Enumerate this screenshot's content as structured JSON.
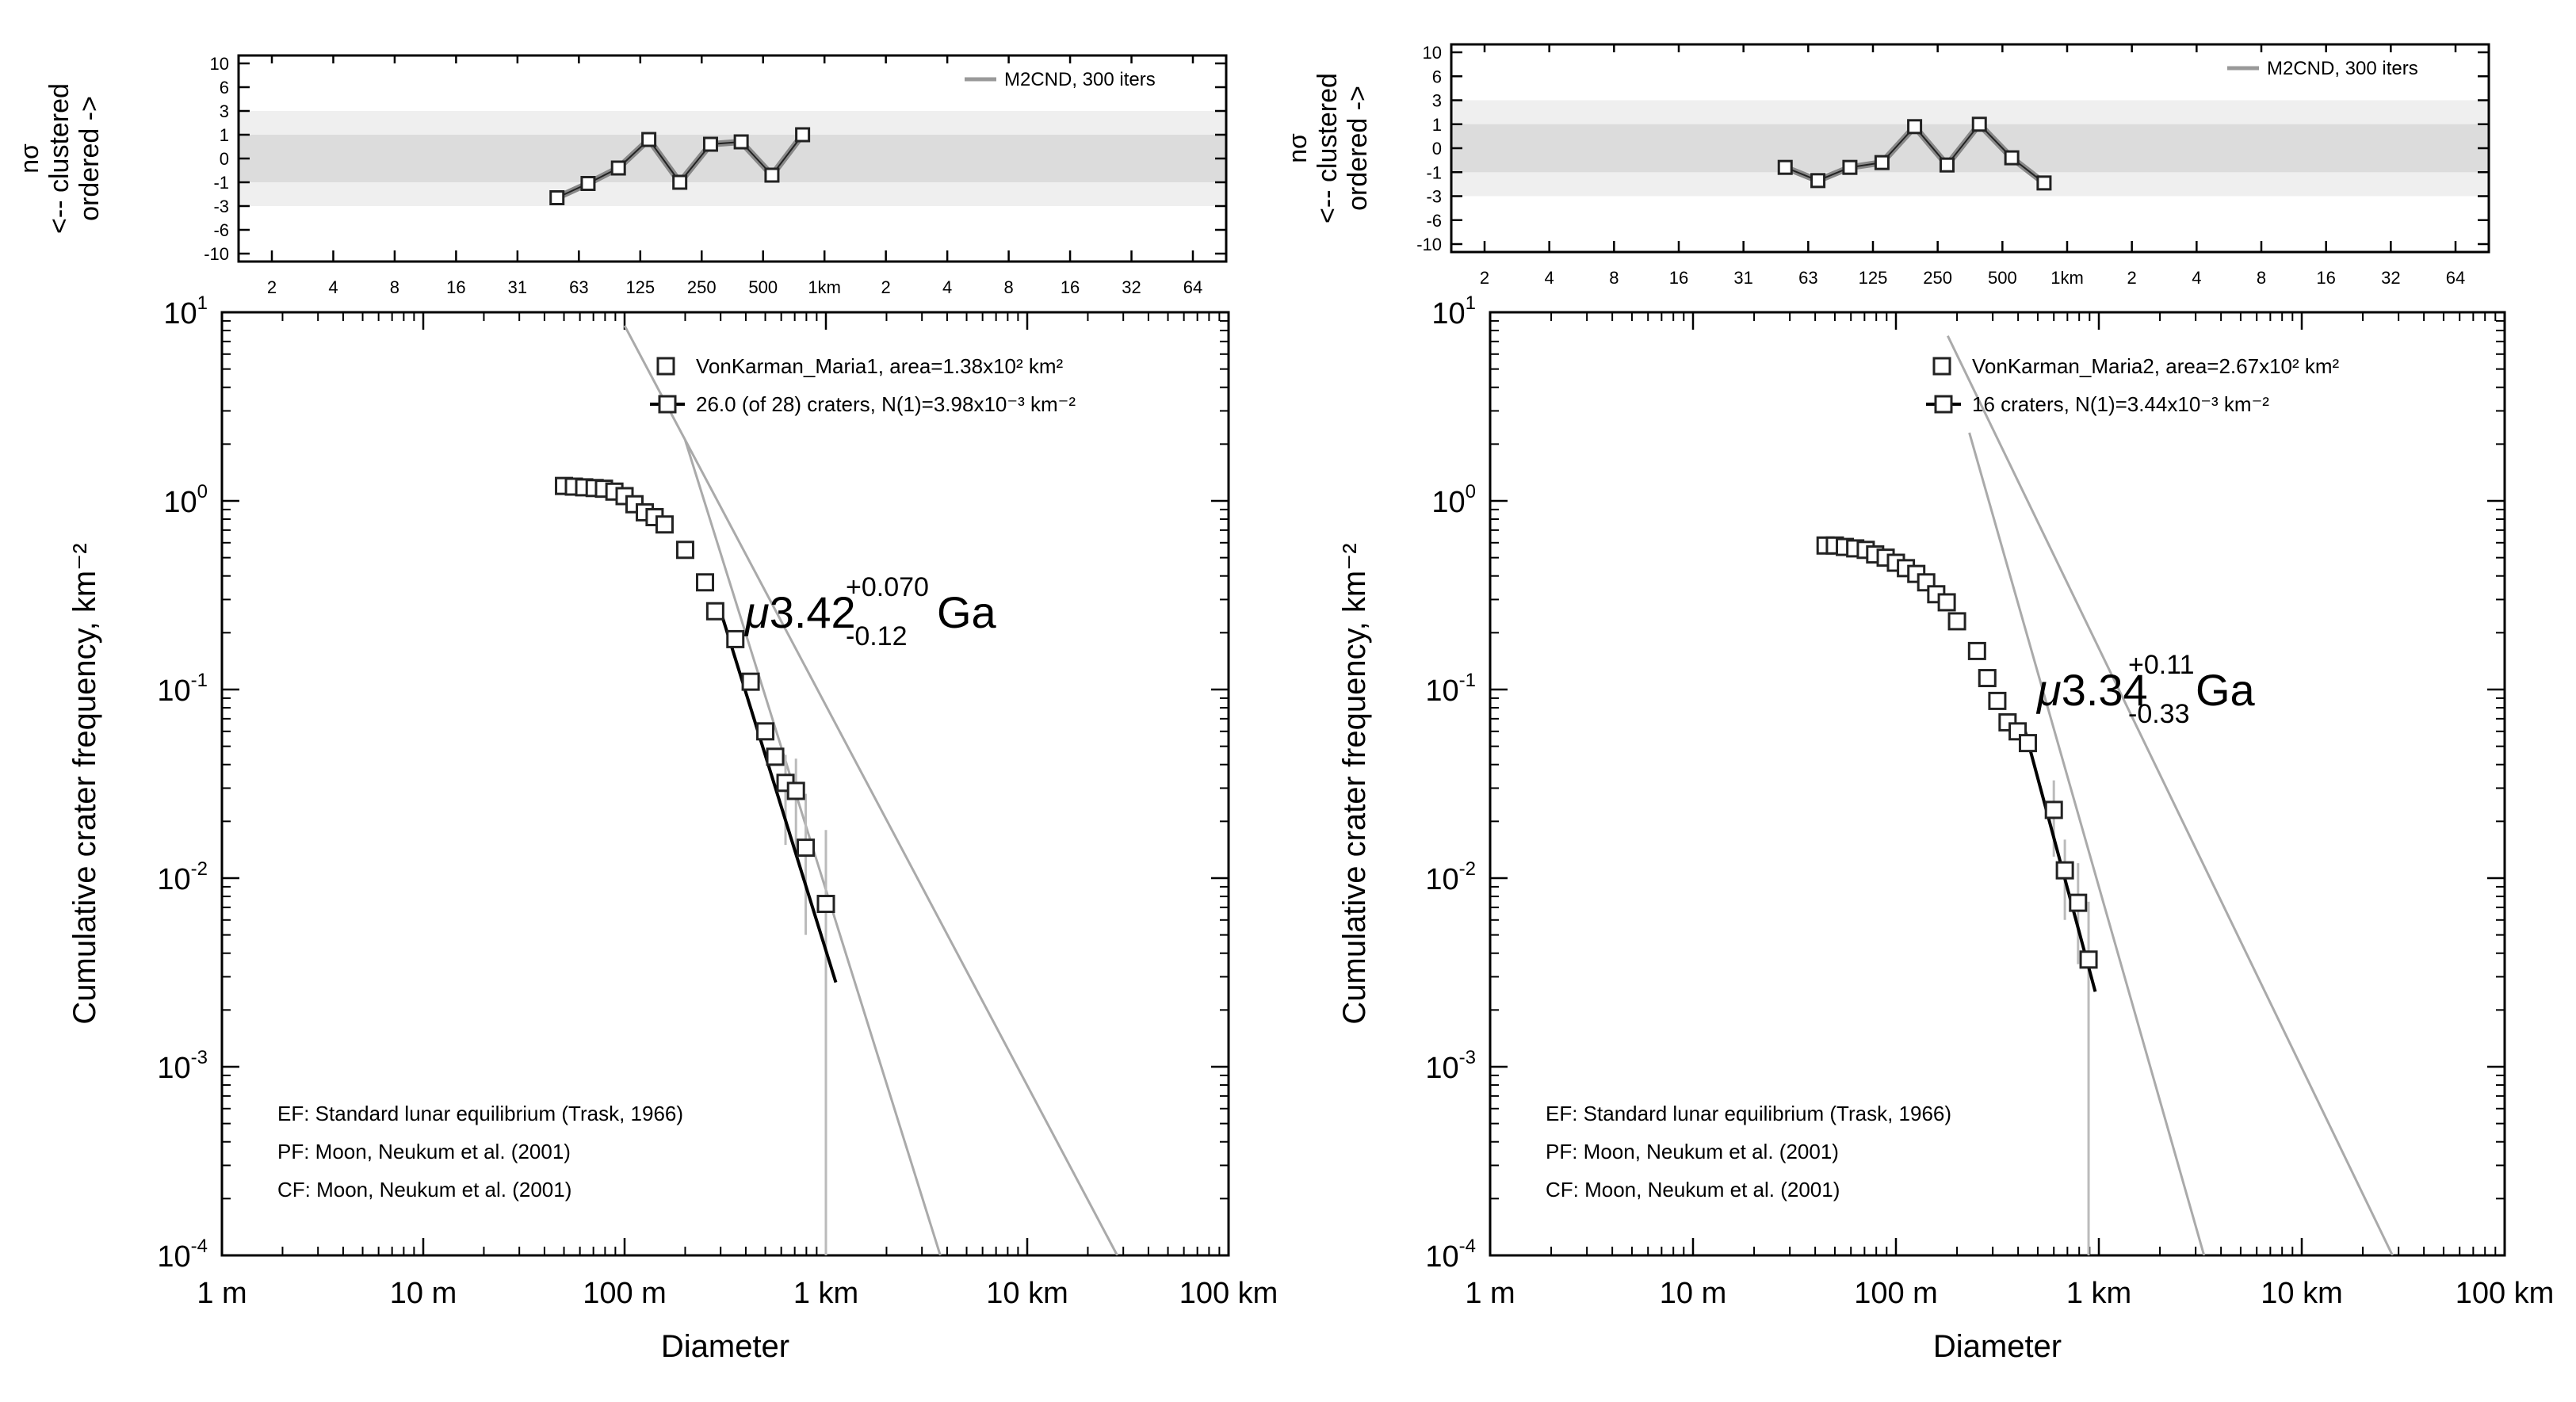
{
  "chart_data": [
    {
      "type": "scatter",
      "panel": "left",
      "randomness": {
        "ylabel_lines": [
          "nσ",
          "<-- clustered",
          "ordered ->"
        ],
        "yticks": [
          "10",
          "6",
          "3",
          "1",
          "0",
          "-1",
          "-3",
          "-6",
          "-10"
        ],
        "xticks": [
          "2",
          "4",
          "8",
          "16",
          "31",
          "63",
          "125",
          "250",
          "500",
          "1km",
          "2",
          "4",
          "8",
          "16",
          "32",
          "64"
        ],
        "legend": "M2CND, 300 iters",
        "bands": {
          "sigma1": 1,
          "sigma3": 3
        },
        "points": [
          {
            "d_m": 50,
            "n": -2.3
          },
          {
            "d_m": 71,
            "n": -1.1
          },
          {
            "d_m": 100,
            "n": -0.4
          },
          {
            "d_m": 141,
            "n": 0.8
          },
          {
            "d_m": 200,
            "n": -1.0
          },
          {
            "d_m": 283,
            "n": 0.6
          },
          {
            "d_m": 400,
            "n": 0.7
          },
          {
            "d_m": 566,
            "n": -0.7
          },
          {
            "d_m": 800,
            "n": 1.0
          }
        ]
      },
      "csfd": {
        "title": "",
        "xlabel": "Diameter",
        "ylabel": "Cumulative crater frequency, km⁻²",
        "xscale": "log",
        "yscale": "log",
        "xlim_km": [
          0.001,
          100
        ],
        "ylim": [
          0.0001,
          10
        ],
        "xticks": [
          "1 m",
          "10 m",
          "100 m",
          "1 km",
          "10 km",
          "100 km"
        ],
        "ytick_mant": [
          "10",
          "10",
          "10",
          "10",
          "10",
          "10"
        ],
        "ytick_exp": [
          "1",
          "0",
          "-1",
          "-2",
          "-3",
          "-4"
        ],
        "legend": {
          "area_label": "VonKarman_Maria1, area=1.38x10² km²",
          "fit_label": "26.0 (of 28) craters, N(1)=3.98x10⁻³ km⁻²"
        },
        "age": {
          "prefix": "μ",
          "value": "3.42",
          "plus": "+0.070",
          "minus": "-0.12",
          "unit": "Ga"
        },
        "notes": [
          "EF: Standard lunar equilibrium (Trask, 1966)",
          "PF: Moon, Neukum et al. (2001)",
          "CF: Moon, Neukum et al. (2001)"
        ],
        "points": [
          {
            "d_km": 0.05,
            "f": 1.2
          },
          {
            "d_km": 0.056,
            "f": 1.19
          },
          {
            "d_km": 0.063,
            "f": 1.18
          },
          {
            "d_km": 0.071,
            "f": 1.17
          },
          {
            "d_km": 0.079,
            "f": 1.16
          },
          {
            "d_km": 0.089,
            "f": 1.12
          },
          {
            "d_km": 0.1,
            "f": 1.06
          },
          {
            "d_km": 0.112,
            "f": 0.96
          },
          {
            "d_km": 0.126,
            "f": 0.87
          },
          {
            "d_km": 0.141,
            "f": 0.82
          },
          {
            "d_km": 0.158,
            "f": 0.75
          },
          {
            "d_km": 0.2,
            "f": 0.55
          },
          {
            "d_km": 0.251,
            "f": 0.37
          },
          {
            "d_km": 0.282,
            "f": 0.26
          },
          {
            "d_km": 0.355,
            "f": 0.185
          },
          {
            "d_km": 0.423,
            "f": 0.11
          },
          {
            "d_km": 0.5,
            "f": 0.06
          },
          {
            "d_km": 0.56,
            "f": 0.044
          },
          {
            "d_km": 0.63,
            "f": 0.032
          },
          {
            "d_km": 0.71,
            "f": 0.029
          },
          {
            "d_km": 0.794,
            "f": 0.0145
          },
          {
            "d_km": 1.0,
            "f": 0.0073
          }
        ],
        "error_bars": [
          {
            "d_km": 0.63,
            "lo": 0.015,
            "hi": 0.045
          },
          {
            "d_km": 0.71,
            "lo": 0.014,
            "hi": 0.043
          },
          {
            "d_km": 0.794,
            "lo": 0.005,
            "hi": 0.028
          },
          {
            "d_km": 1.0,
            "lo": 0.0001,
            "hi": 0.018
          }
        ],
        "fit_line": [
          [
            0.3,
            0.26
          ],
          [
            1.12,
            0.0028
          ]
        ],
        "ef_line": [
          [
            0.1,
            8.5
          ],
          [
            28.0,
            0.0001
          ]
        ],
        "pf_line": [
          [
            0.2,
            2.1
          ],
          [
            3.7,
            0.0001
          ]
        ]
      }
    },
    {
      "type": "scatter",
      "panel": "right",
      "randomness": {
        "ylabel_lines": [
          "nσ",
          "<-- clustered",
          "ordered ->"
        ],
        "yticks": [
          "10",
          "6",
          "3",
          "1",
          "0",
          "-1",
          "-3",
          "-6",
          "-10"
        ],
        "xticks": [
          "2",
          "4",
          "8",
          "16",
          "31",
          "63",
          "125",
          "250",
          "500",
          "1km",
          "2",
          "4",
          "8",
          "16",
          "32",
          "64"
        ],
        "legend": "M2CND, 300 iters",
        "bands": {
          "sigma1": 1,
          "sigma3": 3
        },
        "points": [
          {
            "d_m": 50,
            "n": -0.8
          },
          {
            "d_m": 71,
            "n": -1.7
          },
          {
            "d_m": 100,
            "n": -0.8
          },
          {
            "d_m": 141,
            "n": -0.6
          },
          {
            "d_m": 200,
            "n": 0.9
          },
          {
            "d_m": 283,
            "n": -0.7
          },
          {
            "d_m": 400,
            "n": 1.0
          },
          {
            "d_m": 566,
            "n": -0.4
          },
          {
            "d_m": 800,
            "n": -1.9
          }
        ]
      },
      "csfd": {
        "title": "",
        "xlabel": "Diameter",
        "ylabel": "Cumulative crater frequency, km⁻²",
        "xscale": "log",
        "yscale": "log",
        "xlim_km": [
          0.001,
          100
        ],
        "ylim": [
          0.0001,
          10
        ],
        "xticks": [
          "1 m",
          "10 m",
          "100 m",
          "1 km",
          "10 km",
          "100 km"
        ],
        "ytick_mant": [
          "10",
          "10",
          "10",
          "10",
          "10",
          "10"
        ],
        "ytick_exp": [
          "1",
          "0",
          "-1",
          "-2",
          "-3",
          "-4"
        ],
        "legend": {
          "area_label": "VonKarman_Maria2, area=2.67x10² km²",
          "fit_label": "16 craters, N(1)=3.44x10⁻³ km⁻²"
        },
        "age": {
          "prefix": "μ",
          "value": "3.34",
          "plus": "+0.11",
          "minus": "-0.33",
          "unit": "Ga"
        },
        "notes": [
          "EF: Standard lunar equilibrium (Trask, 1966)",
          "PF: Moon, Neukum et al. (2001)",
          "CF: Moon, Neukum et al. (2001)"
        ],
        "points": [
          {
            "d_km": 0.045,
            "f": 0.58
          },
          {
            "d_km": 0.05,
            "f": 0.58
          },
          {
            "d_km": 0.056,
            "f": 0.57
          },
          {
            "d_km": 0.063,
            "f": 0.56
          },
          {
            "d_km": 0.071,
            "f": 0.55
          },
          {
            "d_km": 0.079,
            "f": 0.52
          },
          {
            "d_km": 0.089,
            "f": 0.5
          },
          {
            "d_km": 0.1,
            "f": 0.47
          },
          {
            "d_km": 0.112,
            "f": 0.44
          },
          {
            "d_km": 0.126,
            "f": 0.41
          },
          {
            "d_km": 0.141,
            "f": 0.37
          },
          {
            "d_km": 0.158,
            "f": 0.32
          },
          {
            "d_km": 0.178,
            "f": 0.29
          },
          {
            "d_km": 0.2,
            "f": 0.23
          },
          {
            "d_km": 0.251,
            "f": 0.16
          },
          {
            "d_km": 0.282,
            "f": 0.115
          },
          {
            "d_km": 0.316,
            "f": 0.087
          },
          {
            "d_km": 0.355,
            "f": 0.067
          },
          {
            "d_km": 0.398,
            "f": 0.06
          },
          {
            "d_km": 0.447,
            "f": 0.052
          },
          {
            "d_km": 0.6,
            "f": 0.023
          },
          {
            "d_km": 0.68,
            "f": 0.011
          },
          {
            "d_km": 0.79,
            "f": 0.0074
          },
          {
            "d_km": 0.89,
            "f": 0.0037
          }
        ],
        "error_bars": [
          {
            "d_km": 0.6,
            "lo": 0.013,
            "hi": 0.033
          },
          {
            "d_km": 0.68,
            "lo": 0.006,
            "hi": 0.016
          },
          {
            "d_km": 0.79,
            "lo": 0.0035,
            "hi": 0.012
          },
          {
            "d_km": 0.89,
            "lo": 0.0001,
            "hi": 0.0075
          }
        ],
        "fit_line": [
          [
            0.43,
            0.062
          ],
          [
            0.96,
            0.0025
          ]
        ],
        "ef_line": [
          [
            0.18,
            7.5
          ],
          [
            28.0,
            0.0001
          ]
        ],
        "pf_line": [
          [
            0.23,
            2.3
          ],
          [
            3.3,
            0.0001
          ]
        ]
      }
    }
  ]
}
